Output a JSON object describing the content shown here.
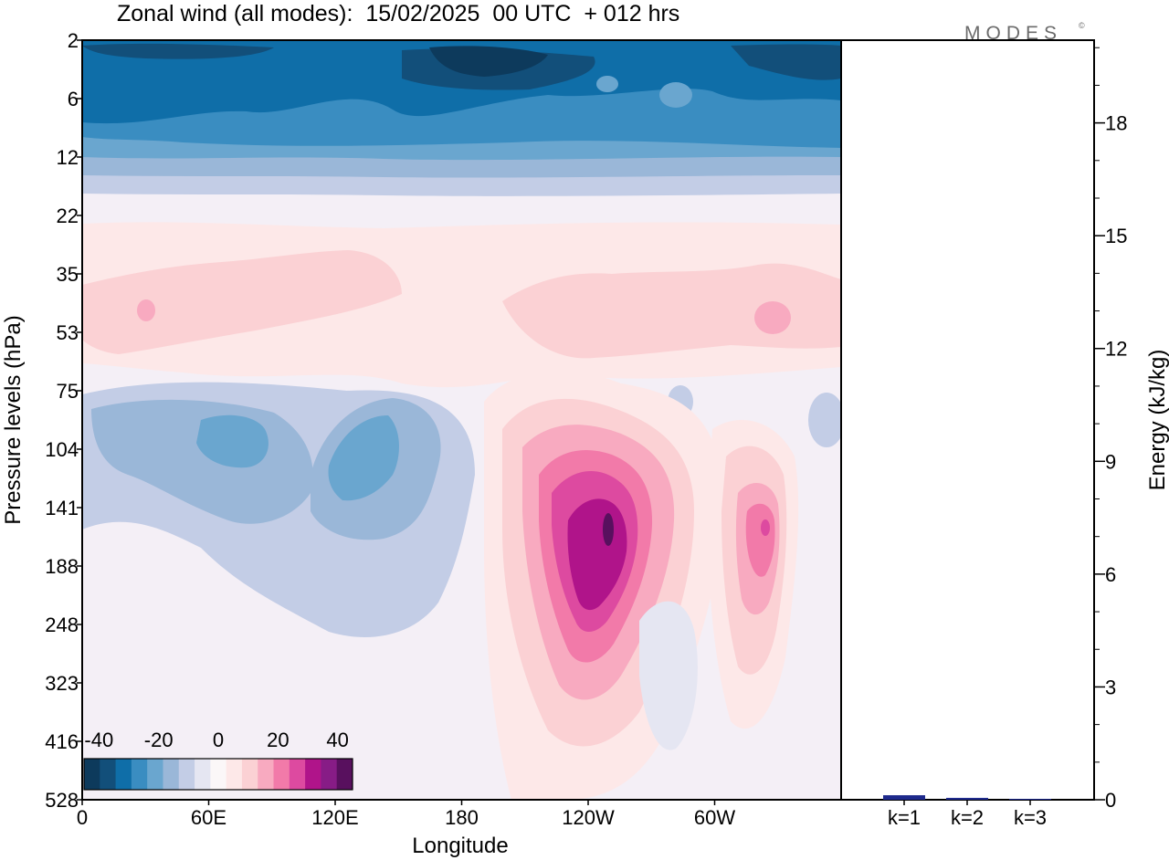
{
  "header": {
    "title": "Zonal wind (all modes):  15/02/2025  00 UTC  + 012 hrs",
    "brand": "MODES",
    "brand_mark": "©"
  },
  "chart_data": [
    {
      "type": "heatmap",
      "title": "Zonal wind (all modes):  15/02/2025  00 UTC  + 012 hrs",
      "xlabel": "Longitude",
      "ylabel": "Pressure levels (hPa)",
      "x_ticks": [
        "0",
        "60E",
        "120E",
        "180",
        "120W",
        "60W"
      ],
      "x_tick_values_deg": [
        0,
        60,
        120,
        180,
        240,
        300
      ],
      "xlim_deg": [
        0,
        360
      ],
      "y_ticks": [
        "2",
        "6",
        "12",
        "22",
        "35",
        "53",
        "75",
        "104",
        "141",
        "188",
        "248",
        "323",
        "416",
        "528"
      ],
      "y_scale": "model levels (pressure decreasing upward)",
      "colorbar": {
        "tick_labels": [
          "-40",
          "-20",
          "0",
          "20",
          "40"
        ],
        "range": [
          -45,
          45
        ],
        "interval": 5,
        "colors": [
          "#0d3a5c",
          "#124f7a",
          "#0f6ea8",
          "#3a8dc1",
          "#6aa6cf",
          "#9ab7d8",
          "#c3cde6",
          "#e5e6f2",
          "#fbf7f8",
          "#fde8e8",
          "#fbd1d4",
          "#f8aac0",
          "#f27aa9",
          "#dd4aa0",
          "#b0148a",
          "#871c86",
          "#58105e"
        ]
      },
      "features": [
        {
          "feature": "easterly (negative) band at top levels",
          "lon_range_deg": [
            0,
            360
          ],
          "level_range_hPa": [
            2,
            14
          ],
          "min_value": -45
        },
        {
          "feature": "weak westerly band",
          "lon_range_deg": [
            0,
            360
          ],
          "level_range_hPa": [
            22,
            60
          ],
          "max_value": 15
        },
        {
          "feature": "easterly core",
          "center_lon_deg": 57,
          "center_level_hPa": 104,
          "value": -15
        },
        {
          "feature": "easterly core",
          "center_lon_deg": 140,
          "center_level_hPa": 120,
          "value": -20
        },
        {
          "feature": "westerly jet core",
          "center_lon_deg": 250,
          "center_level_hPa": 165,
          "value": 40
        },
        {
          "feature": "westerly core",
          "center_lon_deg": 325,
          "center_level_hPa": 160,
          "value": 25
        }
      ]
    },
    {
      "type": "bar",
      "categories": [
        "k=1",
        "k=2",
        "k=3"
      ],
      "values": [
        0.12,
        0.05,
        0.02
      ],
      "ylabel": "Energy (kJ/kg)",
      "ylim": [
        0,
        20.2
      ],
      "y_ticks": [
        "0",
        "3",
        "6",
        "9",
        "12",
        "15",
        "18"
      ],
      "y_tick_values": [
        0,
        3,
        6,
        9,
        12,
        15,
        18
      ],
      "minor_tick_step": 1,
      "bar_colors": [
        "#1e2a8c",
        "#1e2a8c",
        "#1e2a8c"
      ]
    }
  ]
}
